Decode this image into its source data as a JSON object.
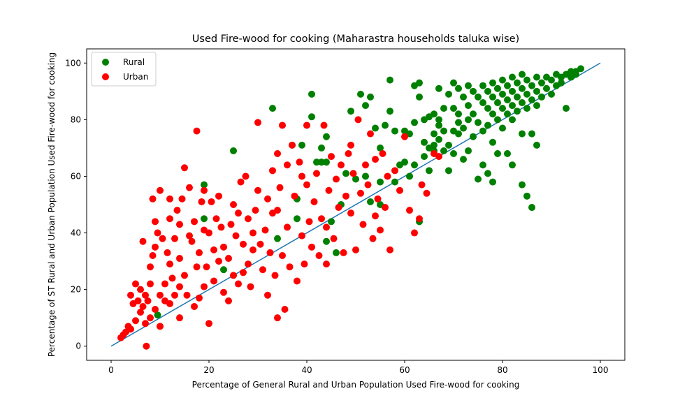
{
  "chart_data": {
    "type": "scatter",
    "title": "Used Fire-wood for cooking (Maharastra households taluka wise)",
    "xlabel": "Percentage of General Rural and Urban Population Used Fire-wood for cooking",
    "ylabel": "Percentage of ST Rural and Urban Population Used Fire-wood for cooking",
    "xlim": [
      -5,
      105
    ],
    "ylim": [
      -5,
      105
    ],
    "xticks": [
      0,
      20,
      40,
      60,
      80,
      100
    ],
    "yticks": [
      0,
      20,
      40,
      60,
      80,
      100
    ],
    "grid": false,
    "legend_position": "top-left",
    "reference_line": {
      "x": [
        0,
        100
      ],
      "y": [
        0,
        100
      ],
      "color": "#1f77b4"
    },
    "series": [
      {
        "name": "Rural",
        "color": "#008000",
        "points": [
          [
            9.5,
            11
          ],
          [
            19,
            45
          ],
          [
            19,
            57
          ],
          [
            23,
            27
          ],
          [
            25,
            69
          ],
          [
            33,
            84
          ],
          [
            34,
            38
          ],
          [
            37,
            71
          ],
          [
            38,
            52
          ],
          [
            38,
            45
          ],
          [
            39,
            71
          ],
          [
            41,
            89
          ],
          [
            41,
            81
          ],
          [
            42,
            65
          ],
          [
            43,
            65
          ],
          [
            43,
            70
          ],
          [
            44,
            74
          ],
          [
            44,
            65
          ],
          [
            45,
            44
          ],
          [
            44,
            37
          ],
          [
            46,
            33
          ],
          [
            47,
            50
          ],
          [
            48,
            61
          ],
          [
            49,
            83
          ],
          [
            50,
            59
          ],
          [
            51,
            89
          ],
          [
            52,
            85
          ],
          [
            52,
            60
          ],
          [
            53,
            88
          ],
          [
            53,
            51
          ],
          [
            54,
            77
          ],
          [
            55,
            70
          ],
          [
            55,
            58
          ],
          [
            55,
            50
          ],
          [
            56,
            78
          ],
          [
            57,
            94
          ],
          [
            57,
            83
          ],
          [
            58,
            76
          ],
          [
            58,
            58
          ],
          [
            59,
            64
          ],
          [
            60,
            76
          ],
          [
            60,
            65
          ],
          [
            61,
            75
          ],
          [
            61,
            60
          ],
          [
            62,
            79
          ],
          [
            62,
            64
          ],
          [
            62,
            92
          ],
          [
            63,
            93
          ],
          [
            63,
            88
          ],
          [
            63,
            44
          ],
          [
            64,
            80
          ],
          [
            64,
            67
          ],
          [
            64,
            72
          ],
          [
            65,
            81
          ],
          [
            65,
            70
          ],
          [
            65,
            62
          ],
          [
            66,
            82
          ],
          [
            66,
            75
          ],
          [
            66,
            71
          ],
          [
            66,
            69
          ],
          [
            67,
            91
          ],
          [
            67,
            80
          ],
          [
            67,
            73
          ],
          [
            67,
            78
          ],
          [
            68,
            84
          ],
          [
            68,
            69
          ],
          [
            68,
            76
          ],
          [
            69,
            71
          ],
          [
            69,
            62
          ],
          [
            69,
            89
          ],
          [
            70,
            93
          ],
          [
            70,
            84
          ],
          [
            70,
            76
          ],
          [
            70,
            68
          ],
          [
            71,
            91
          ],
          [
            71,
            79
          ],
          [
            71,
            82
          ],
          [
            71,
            75
          ],
          [
            72,
            88
          ],
          [
            72,
            77
          ],
          [
            72,
            66
          ],
          [
            73,
            92
          ],
          [
            73,
            85
          ],
          [
            73,
            69
          ],
          [
            73,
            80
          ],
          [
            74,
            90
          ],
          [
            74,
            82
          ],
          [
            74,
            74
          ],
          [
            75,
            88
          ],
          [
            75,
            79
          ],
          [
            75,
            59
          ],
          [
            76,
            92
          ],
          [
            76,
            86
          ],
          [
            76,
            76
          ],
          [
            76,
            64
          ],
          [
            77,
            90
          ],
          [
            77,
            84
          ],
          [
            77,
            78
          ],
          [
            77,
            61
          ],
          [
            78,
            93
          ],
          [
            78,
            88
          ],
          [
            78,
            82
          ],
          [
            78,
            72
          ],
          [
            78,
            58
          ],
          [
            79,
            91
          ],
          [
            79,
            86
          ],
          [
            79,
            80
          ],
          [
            79,
            68
          ],
          [
            80,
            94
          ],
          [
            80,
            89
          ],
          [
            80,
            84
          ],
          [
            80,
            77
          ],
          [
            81,
            92
          ],
          [
            81,
            87
          ],
          [
            81,
            82
          ],
          [
            81,
            68
          ],
          [
            82,
            95
          ],
          [
            82,
            90
          ],
          [
            82,
            85
          ],
          [
            82,
            80
          ],
          [
            82,
            64
          ],
          [
            83,
            93
          ],
          [
            83,
            88
          ],
          [
            83,
            83
          ],
          [
            84,
            96
          ],
          [
            84,
            91
          ],
          [
            84,
            86
          ],
          [
            84,
            75
          ],
          [
            84,
            57
          ],
          [
            85,
            94
          ],
          [
            85,
            89
          ],
          [
            85,
            84
          ],
          [
            85,
            53
          ],
          [
            86,
            92
          ],
          [
            86,
            87
          ],
          [
            86,
            49
          ],
          [
            86,
            75
          ],
          [
            87,
            95
          ],
          [
            87,
            90
          ],
          [
            87,
            85
          ],
          [
            87,
            71
          ],
          [
            88,
            93
          ],
          [
            88,
            88
          ],
          [
            89,
            95
          ],
          [
            89,
            91
          ],
          [
            90,
            94
          ],
          [
            90,
            89
          ],
          [
            91,
            96
          ],
          [
            91,
            92
          ],
          [
            92,
            95
          ],
          [
            92,
            93
          ],
          [
            93,
            96
          ],
          [
            93,
            84
          ],
          [
            94,
            97
          ],
          [
            94,
            95
          ],
          [
            95,
            97
          ],
          [
            95,
            96
          ],
          [
            96,
            98
          ]
        ]
      },
      {
        "name": "Urban",
        "color": "#ff0000",
        "points": [
          [
            2,
            3
          ],
          [
            2.5,
            4
          ],
          [
            3,
            5
          ],
          [
            3.5,
            7
          ],
          [
            4,
            6
          ],
          [
            4,
            18
          ],
          [
            4.5,
            15
          ],
          [
            5,
            22
          ],
          [
            5,
            9
          ],
          [
            5.5,
            16
          ],
          [
            6,
            20
          ],
          [
            6,
            12
          ],
          [
            6.5,
            37
          ],
          [
            6.5,
            14
          ],
          [
            7,
            18
          ],
          [
            7,
            8
          ],
          [
            7.2,
            0
          ],
          [
            7.5,
            16
          ],
          [
            8,
            28
          ],
          [
            8,
            22
          ],
          [
            8,
            10
          ],
          [
            8.5,
            52
          ],
          [
            8.5,
            32
          ],
          [
            9,
            44
          ],
          [
            9,
            35
          ],
          [
            9,
            13
          ],
          [
            9.5,
            40
          ],
          [
            10,
            18
          ],
          [
            10,
            7
          ],
          [
            10,
            55
          ],
          [
            10.5,
            38
          ],
          [
            11,
            22
          ],
          [
            11,
            16
          ],
          [
            11.5,
            33
          ],
          [
            12,
            29
          ],
          [
            12,
            15
          ],
          [
            12,
            52
          ],
          [
            12.5,
            24
          ],
          [
            13,
            38
          ],
          [
            13,
            18
          ],
          [
            13.5,
            48
          ],
          [
            14,
            43
          ],
          [
            14,
            10
          ],
          [
            14,
            31
          ],
          [
            14.5,
            52
          ],
          [
            15,
            25
          ],
          [
            15,
            63
          ],
          [
            15.5,
            18
          ],
          [
            16,
            39
          ],
          [
            16,
            56
          ],
          [
            16.5,
            37
          ],
          [
            17,
            44
          ],
          [
            17,
            14
          ],
          [
            17.5,
            28
          ],
          [
            17.5,
            76
          ],
          [
            18,
            33
          ],
          [
            18,
            17
          ],
          [
            18.5,
            51
          ],
          [
            19,
            21
          ],
          [
            19,
            41
          ],
          [
            19.5,
            28
          ],
          [
            20,
            8
          ],
          [
            20,
            40
          ],
          [
            20.5,
            51
          ],
          [
            21,
            23
          ],
          [
            21,
            34
          ],
          [
            21.5,
            45
          ],
          [
            22,
            53
          ],
          [
            22,
            30
          ],
          [
            22.5,
            42
          ],
          [
            23,
            19
          ],
          [
            23,
            35
          ],
          [
            24,
            31
          ],
          [
            24.5,
            43
          ],
          [
            25,
            50
          ],
          [
            25,
            25
          ],
          [
            25.5,
            39
          ],
          [
            26,
            47
          ],
          [
            26,
            22
          ],
          [
            26.5,
            58
          ],
          [
            27,
            26
          ],
          [
            27,
            36
          ],
          [
            27.5,
            60
          ],
          [
            28,
            45
          ],
          [
            28,
            29
          ],
          [
            28.5,
            21
          ],
          [
            29,
            34
          ],
          [
            29.5,
            48
          ],
          [
            30,
            55
          ],
          [
            30,
            79
          ],
          [
            30.5,
            36
          ],
          [
            31,
            27
          ],
          [
            31.5,
            41
          ],
          [
            32,
            52
          ],
          [
            32,
            18
          ],
          [
            32.5,
            33
          ],
          [
            33,
            47
          ],
          [
            33,
            62
          ],
          [
            33.5,
            25
          ],
          [
            34,
            68
          ],
          [
            34,
            10
          ],
          [
            34.5,
            56
          ],
          [
            35,
            32
          ],
          [
            35,
            78
          ],
          [
            35.5,
            13
          ],
          [
            36,
            42
          ],
          [
            36,
            64
          ],
          [
            36.5,
            28
          ],
          [
            37,
            71
          ],
          [
            37.5,
            53
          ],
          [
            38,
            23
          ],
          [
            38.5,
            65
          ],
          [
            39,
            39
          ],
          [
            39.5,
            29
          ],
          [
            40,
            57
          ],
          [
            40,
            78
          ],
          [
            40.5,
            44
          ],
          [
            41,
            35
          ],
          [
            41.5,
            51
          ],
          [
            42,
            61
          ],
          [
            42.5,
            32
          ],
          [
            43,
            45
          ],
          [
            43.5,
            78
          ],
          [
            44,
            29
          ],
          [
            44.5,
            55
          ],
          [
            45,
            67
          ],
          [
            45.5,
            38
          ],
          [
            46,
            59
          ],
          [
            46.5,
            49
          ],
          [
            47,
            64
          ],
          [
            47.5,
            33
          ],
          [
            48,
            53
          ],
          [
            48.5,
            68
          ],
          [
            49,
            47
          ],
          [
            49.5,
            61
          ],
          [
            50,
            34
          ],
          [
            50.5,
            80
          ],
          [
            51,
            54
          ],
          [
            51.5,
            43
          ],
          [
            52,
            64
          ],
          [
            52.5,
            57
          ],
          [
            53,
            75
          ],
          [
            53.5,
            38
          ],
          [
            54,
            66
          ],
          [
            54.5,
            52
          ],
          [
            55,
            41
          ],
          [
            55.5,
            68
          ],
          [
            56,
            49
          ],
          [
            56.5,
            60
          ],
          [
            57,
            34
          ],
          [
            58,
            62
          ],
          [
            59,
            55
          ],
          [
            60,
            74
          ],
          [
            61,
            48
          ],
          [
            62,
            40
          ],
          [
            63,
            45
          ],
          [
            63.5,
            57
          ],
          [
            64.5,
            54
          ],
          [
            66,
            68
          ],
          [
            67,
            67
          ],
          [
            12,
            45
          ],
          [
            14,
            21
          ],
          [
            19,
            55
          ],
          [
            24,
            16
          ],
          [
            29,
            40
          ],
          [
            34,
            48
          ],
          [
            39,
            60
          ],
          [
            44,
            42
          ],
          [
            49,
            71
          ],
          [
            54,
            46
          ]
        ]
      }
    ]
  }
}
